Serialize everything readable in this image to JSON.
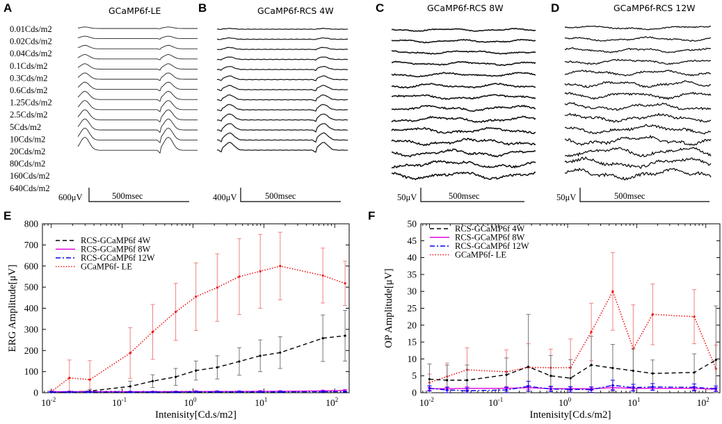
{
  "panels": {
    "A": {
      "label": "A",
      "title": "GCaMP6f-LE",
      "scale_amp": "600μV",
      "scale_time": "500msec"
    },
    "B": {
      "label": "B",
      "title": "GCaMP6f-RCS 4W",
      "scale_amp": "400μV",
      "scale_time": "500msec"
    },
    "C": {
      "label": "C",
      "title": "GCaMP6f-RCS 8W",
      "scale_amp": "50μV",
      "scale_time": "500msec"
    },
    "D": {
      "label": "D",
      "title": "GCaMP6f-RCS 12W",
      "scale_amp": "50μV",
      "scale_time": "500msec"
    },
    "E": {
      "label": "E"
    },
    "F": {
      "label": "F"
    }
  },
  "intensity_levels": [
    "0.01Cds/m2",
    "0.02Cds/m2",
    "0.04Cds/m2",
    "0.1Cds/m2",
    "0.3Cds/m2",
    "0.6Cds/m2",
    "1.25Cds/m2",
    "2.5Cds/m2",
    "5Cds/m2",
    "10Cds/m2",
    "20Cds/m2",
    "80Cds/m2",
    "160Cds/m2",
    "640Cds/m2"
  ],
  "colors": {
    "rcs4w": "#000000",
    "rcs8w": "#e000e0",
    "rcs12w": "#0000ee",
    "le": "#ee1111",
    "err_le": "#f08080",
    "err_4w": "#777777"
  },
  "chart_data": [
    {
      "id": "E",
      "type": "line",
      "xscale": "log",
      "xlim": [
        0.0075,
        160
      ],
      "ylim": [
        0,
        800
      ],
      "xticks": [
        0.01,
        0.1,
        1,
        10,
        100
      ],
      "xtick_labels": [
        [
          "10",
          "-2"
        ],
        [
          "10",
          "-1"
        ],
        [
          "10",
          "0"
        ],
        [
          "10",
          "1"
        ],
        [
          "10",
          "2"
        ]
      ],
      "yticks": [
        0,
        100,
        200,
        300,
        400,
        500,
        600,
        700,
        800
      ],
      "xlabel": "Intenisity[Cd.s/m2]",
      "ylabel": "ERG Amplitude[μV]",
      "legend_position": "top-left",
      "x": [
        0.01,
        0.018,
        0.035,
        0.13,
        0.27,
        0.57,
        1.1,
        2.2,
        4.5,
        8.9,
        17,
        68,
        140
      ],
      "series": [
        {
          "name": "RCS-GCaMP6f 4W",
          "color_key": "rcs4w",
          "style": "dashed",
          "values": [
            3,
            3,
            8,
            30,
            55,
            75,
            105,
            120,
            148,
            175,
            190,
            258,
            270
          ],
          "err": [
            4,
            5,
            8,
            25,
            30,
            40,
            45,
            55,
            65,
            75,
            75,
            110,
            120
          ]
        },
        {
          "name": "RCS-GCaMP6f 8W",
          "color_key": "rcs8w",
          "style": "solid",
          "values": [
            5,
            5,
            5,
            5,
            5,
            5,
            6,
            6,
            6,
            7,
            7,
            9,
            11
          ],
          "err": [
            2,
            2,
            2,
            2,
            2,
            2,
            3,
            3,
            3,
            3,
            3,
            3,
            4
          ]
        },
        {
          "name": "RCS-GCaMP6f 12W",
          "color_key": "rcs12w",
          "style": "dashdot",
          "values": [
            3,
            3,
            3,
            3,
            3,
            3,
            4,
            4,
            4,
            4,
            4,
            5,
            5
          ],
          "err": [
            2,
            2,
            2,
            2,
            2,
            2,
            2,
            2,
            2,
            2,
            2,
            2,
            2
          ]
        },
        {
          "name": "GCaMP6f- LE",
          "color_key": "le",
          "style": "dotted",
          "values": [
            5,
            70,
            62,
            188,
            288,
            383,
            455,
            498,
            550,
            575,
            600,
            555,
            518
          ],
          "err": [
            5,
            85,
            90,
            120,
            130,
            135,
            160,
            160,
            180,
            175,
            160,
            130,
            105
          ]
        }
      ]
    },
    {
      "id": "F",
      "type": "line",
      "xscale": "log",
      "xlim": [
        0.0075,
        160
      ],
      "ylim": [
        0,
        50
      ],
      "xticks": [
        0.01,
        0.1,
        1,
        10,
        100
      ],
      "xtick_labels": [
        [
          "10",
          "-2"
        ],
        [
          "10",
          "-1"
        ],
        [
          "10",
          "0"
        ],
        [
          "10",
          "1"
        ],
        [
          "10",
          "2"
        ]
      ],
      "yticks": [
        0,
        5,
        10,
        15,
        20,
        25,
        30,
        35,
        40,
        45,
        50
      ],
      "xlabel": "Intenisity[Cd.s/m2]",
      "ylabel": "OP  Amplitude[μV]",
      "legend_position": "top-left",
      "x": [
        0.01,
        0.018,
        0.035,
        0.13,
        0.27,
        0.57,
        1.1,
        2.2,
        4.5,
        8.9,
        17,
        68,
        140
      ],
      "series": [
        {
          "name": "RCS-GCaMP6f 4W",
          "color_key": "rcs4w",
          "style": "dashed",
          "values": [
            4,
            3.7,
            3.7,
            5.3,
            7.7,
            5,
            4.3,
            8.2,
            7.3,
            6.5,
            5.7,
            6,
            9.7
          ],
          "err": [
            4.5,
            4.5,
            4.5,
            5,
            15.5,
            6,
            5.5,
            8.5,
            7,
            6.5,
            4,
            5.5,
            16
          ]
        },
        {
          "name": "RCS-GCaMP6f 8W",
          "color_key": "rcs8w",
          "style": "solid",
          "values": [
            1.2,
            1.2,
            1.3,
            1.3,
            1.5,
            1.2,
            1.2,
            1.2,
            1.5,
            1.3,
            1.3,
            1.3,
            1
          ],
          "err": [
            0.5,
            0.5,
            0.5,
            0.5,
            0.6,
            0.5,
            0.5,
            0.5,
            0.6,
            0.5,
            0.5,
            0.5,
            0.5
          ]
        },
        {
          "name": "RCS-GCaMP6f 12W",
          "color_key": "rcs12w",
          "style": "dashdot",
          "values": [
            1.3,
            0.8,
            0.6,
            0.8,
            1.9,
            1.1,
            1,
            0.9,
            2.2,
            1.5,
            1.7,
            1.6,
            1.2
          ],
          "err": [
            0.8,
            0.8,
            0.8,
            0.8,
            1.5,
            0.8,
            0.8,
            0.8,
            1.5,
            1,
            1,
            1,
            0.8
          ]
        },
        {
          "name": "GCaMP6f- LE",
          "color_key": "le",
          "style": "dotted",
          "values": [
            3,
            4.8,
            6.8,
            6.2,
            7.5,
            7.4,
            7.4,
            18,
            30,
            13,
            23.2,
            22.5,
            7.1
          ],
          "err": [
            2.5,
            4,
            6.5,
            6.5,
            7,
            5.5,
            8.5,
            8.5,
            11.5,
            13,
            9,
            8,
            7
          ]
        }
      ]
    }
  ]
}
